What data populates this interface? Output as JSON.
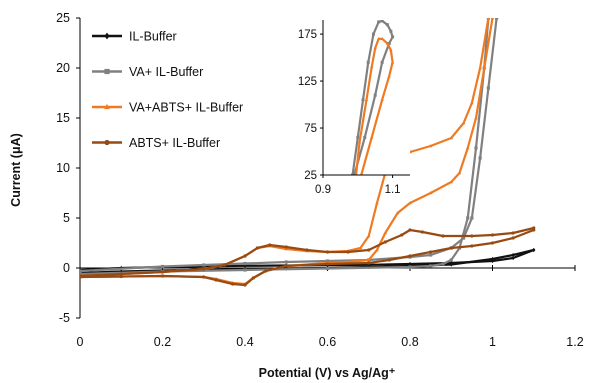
{
  "chart_data": {
    "type": "line",
    "xlabel": "Potential (V) vs Ag/Ag⁺",
    "ylabel": "Current (μA)",
    "xlim": [
      0,
      1.2
    ],
    "ylim": [
      -5,
      25
    ],
    "x_ticks": [
      "0",
      "0.2",
      "0.4",
      "0.6",
      "0.8",
      "1",
      "1.2"
    ],
    "y_ticks": [
      "-5",
      "0",
      "5",
      "10",
      "15",
      "20",
      "25"
    ],
    "grid": false,
    "legend_position": "top-left",
    "series": [
      {
        "name": "IL-Buffer",
        "color": "#111111",
        "marker": "diamond",
        "forward": [
          [
            0,
            -0.5
          ],
          [
            0.1,
            -0.35
          ],
          [
            0.2,
            -0.25
          ],
          [
            0.3,
            -0.2
          ],
          [
            0.4,
            -0.12
          ],
          [
            0.5,
            -0.05
          ],
          [
            0.6,
            0.0
          ],
          [
            0.7,
            0.1
          ],
          [
            0.8,
            0.2
          ],
          [
            0.9,
            0.35
          ],
          [
            1.0,
            0.9
          ],
          [
            1.05,
            1.3
          ],
          [
            1.1,
            1.8
          ]
        ],
        "reverse": [
          [
            1.1,
            1.8
          ],
          [
            1.05,
            1.0
          ],
          [
            1.0,
            0.7
          ],
          [
            0.9,
            0.5
          ],
          [
            0.8,
            0.4
          ],
          [
            0.7,
            0.32
          ],
          [
            0.6,
            0.28
          ],
          [
            0.5,
            0.25
          ],
          [
            0.4,
            0.22
          ],
          [
            0.3,
            0.18
          ],
          [
            0.2,
            0.1
          ],
          [
            0.1,
            0.0
          ],
          [
            0.0,
            -0.2
          ]
        ]
      },
      {
        "name": "VA+ IL-Buffer",
        "color": "#808080",
        "marker": "square",
        "forward": [
          [
            0,
            -0.6
          ],
          [
            0.2,
            -0.35
          ],
          [
            0.4,
            -0.2
          ],
          [
            0.6,
            -0.05
          ],
          [
            0.8,
            0.1
          ],
          [
            0.85,
            0.2
          ],
          [
            0.88,
            0.4
          ],
          [
            0.9,
            0.8
          ],
          [
            0.92,
            2.0
          ],
          [
            0.94,
            5.0
          ],
          [
            0.96,
            12.0
          ],
          [
            0.98,
            20.0
          ],
          [
            0.99,
            25.0
          ]
        ],
        "reverse": [
          [
            1.01,
            25.0
          ],
          [
            0.99,
            18.0
          ],
          [
            0.97,
            11.0
          ],
          [
            0.95,
            5.0
          ],
          [
            0.93,
            3.0
          ],
          [
            0.9,
            2.0
          ],
          [
            0.85,
            1.3
          ],
          [
            0.8,
            1.1
          ],
          [
            0.7,
            0.8
          ],
          [
            0.6,
            0.7
          ],
          [
            0.5,
            0.6
          ],
          [
            0.4,
            0.45
          ],
          [
            0.3,
            0.3
          ],
          [
            0.2,
            0.15
          ],
          [
            0.0,
            -0.3
          ]
        ]
      },
      {
        "name": "VA+ABTS+ IL-Buffer",
        "color": "#F07A22",
        "marker": "triangle",
        "forward": [
          [
            0,
            -0.8
          ],
          [
            0.1,
            -0.6
          ],
          [
            0.2,
            -0.4
          ],
          [
            0.3,
            -0.1
          ],
          [
            0.35,
            0.3
          ],
          [
            0.4,
            1.2
          ],
          [
            0.43,
            2.0
          ],
          [
            0.46,
            2.2
          ],
          [
            0.5,
            1.9
          ],
          [
            0.55,
            1.7
          ],
          [
            0.6,
            1.6
          ],
          [
            0.65,
            1.7
          ],
          [
            0.68,
            2.0
          ],
          [
            0.7,
            3.2
          ],
          [
            0.72,
            6.5
          ],
          [
            0.74,
            9.5
          ],
          [
            0.77,
            11.0
          ],
          [
            0.8,
            11.6
          ],
          [
            0.85,
            12.2
          ],
          [
            0.9,
            13.0
          ],
          [
            0.93,
            14.5
          ],
          [
            0.95,
            16.5
          ],
          [
            0.97,
            20.0
          ],
          [
            0.99,
            25.0
          ]
        ],
        "reverse": [
          [
            1.0,
            25.0
          ],
          [
            0.98,
            20.0
          ],
          [
            0.96,
            15.0
          ],
          [
            0.94,
            12.0
          ],
          [
            0.92,
            9.5
          ],
          [
            0.9,
            8.6
          ],
          [
            0.85,
            7.5
          ],
          [
            0.8,
            6.5
          ],
          [
            0.77,
            5.5
          ],
          [
            0.74,
            3.5
          ],
          [
            0.72,
            1.8
          ],
          [
            0.7,
            0.8
          ],
          [
            0.65,
            0.6
          ],
          [
            0.6,
            0.5
          ],
          [
            0.5,
            0.2
          ],
          [
            0.45,
            -0.3
          ],
          [
            0.42,
            -1.0
          ],
          [
            0.4,
            -1.6
          ],
          [
            0.37,
            -1.5
          ],
          [
            0.33,
            -1.1
          ],
          [
            0.3,
            -0.9
          ],
          [
            0.2,
            -0.8
          ],
          [
            0.1,
            -0.85
          ],
          [
            0.0,
            -0.9
          ]
        ]
      },
      {
        "name": "ABTS+ IL-Buffer",
        "color": "#974A12",
        "marker": "circle",
        "forward": [
          [
            0,
            -0.8
          ],
          [
            0.1,
            -0.6
          ],
          [
            0.2,
            -0.4
          ],
          [
            0.3,
            -0.1
          ],
          [
            0.35,
            0.3
          ],
          [
            0.4,
            1.2
          ],
          [
            0.43,
            2.0
          ],
          [
            0.46,
            2.3
          ],
          [
            0.5,
            2.1
          ],
          [
            0.55,
            1.8
          ],
          [
            0.6,
            1.6
          ],
          [
            0.65,
            1.6
          ],
          [
            0.7,
            1.8
          ],
          [
            0.74,
            2.6
          ],
          [
            0.78,
            3.3
          ],
          [
            0.8,
            3.8
          ],
          [
            0.83,
            3.6
          ],
          [
            0.88,
            3.2
          ],
          [
            0.95,
            3.2
          ],
          [
            1.0,
            3.3
          ],
          [
            1.05,
            3.5
          ],
          [
            1.1,
            4.0
          ]
        ],
        "reverse": [
          [
            1.1,
            3.8
          ],
          [
            1.05,
            3.0
          ],
          [
            1.0,
            2.5
          ],
          [
            0.95,
            2.2
          ],
          [
            0.9,
            2.0
          ],
          [
            0.85,
            1.6
          ],
          [
            0.8,
            1.2
          ],
          [
            0.75,
            0.8
          ],
          [
            0.7,
            0.5
          ],
          [
            0.6,
            0.4
          ],
          [
            0.5,
            0.2
          ],
          [
            0.45,
            -0.3
          ],
          [
            0.42,
            -1.0
          ],
          [
            0.4,
            -1.7
          ],
          [
            0.37,
            -1.6
          ],
          [
            0.33,
            -1.2
          ],
          [
            0.3,
            -0.9
          ],
          [
            0.2,
            -0.8
          ],
          [
            0.1,
            -0.85
          ],
          [
            0.0,
            -0.9
          ]
        ]
      }
    ],
    "inset": {
      "xlim": [
        0.9,
        1.15
      ],
      "ylim": [
        25,
        190
      ],
      "x_ticks": [
        "0.9",
        "1.1"
      ],
      "y_ticks": [
        "25",
        "75",
        "125",
        "175"
      ],
      "series": [
        {
          "name": "VA+ IL-Buffer",
          "color": "#808080",
          "marker": "square",
          "forward": [
            [
              0.99,
              25
            ],
            [
              1.02,
              65
            ],
            [
              1.05,
              110
            ],
            [
              1.07,
              145
            ],
            [
              1.09,
              165
            ]
          ],
          "reverse": [
            [
              1.09,
              165
            ],
            [
              1.1,
              172
            ],
            [
              1.095,
              178
            ],
            [
              1.085,
              185
            ],
            [
              1.07,
              189
            ],
            [
              1.06,
              188
            ],
            [
              1.045,
              175
            ],
            [
              1.03,
              145
            ],
            [
              1.015,
              105
            ],
            [
              1.0,
              65
            ],
            [
              0.985,
              25
            ]
          ]
        },
        {
          "name": "VA+ABTS+ IL-Buffer",
          "color": "#F07A22",
          "marker": "triangle",
          "forward": [
            [
              1.01,
              25
            ],
            [
              1.04,
              65
            ],
            [
              1.07,
              105
            ],
            [
              1.09,
              130
            ],
            [
              1.1,
              145
            ]
          ],
          "reverse": [
            [
              1.1,
              145
            ],
            [
              1.095,
              158
            ],
            [
              1.085,
              165
            ],
            [
              1.07,
              170
            ],
            [
              1.06,
              170
            ],
            [
              1.05,
              160
            ],
            [
              1.04,
              140
            ],
            [
              1.025,
              105
            ],
            [
              1.005,
              60
            ],
            [
              0.995,
              25
            ]
          ]
        }
      ]
    }
  }
}
